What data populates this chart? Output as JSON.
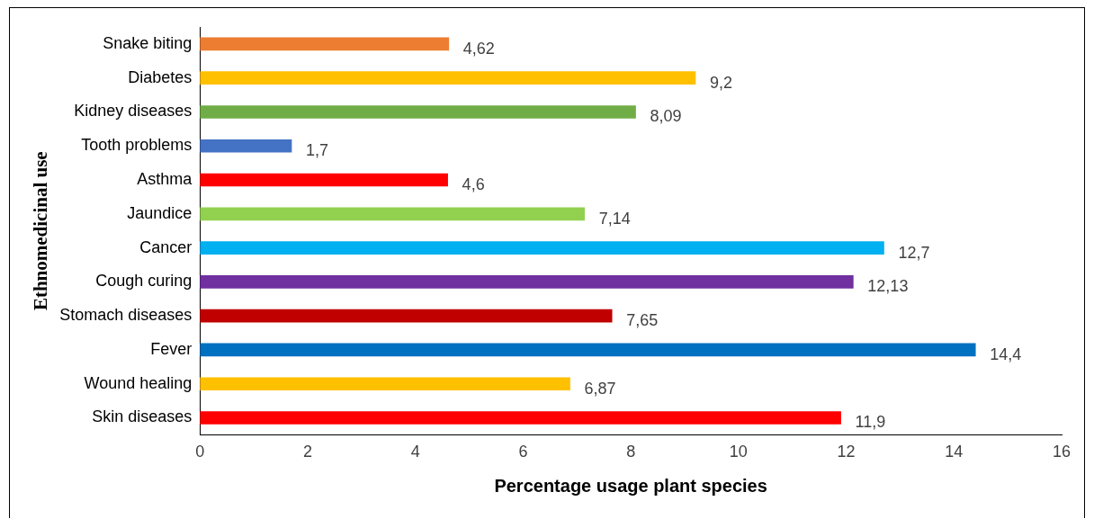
{
  "chart_data": {
    "type": "bar",
    "orientation": "horizontal",
    "xlabel": "Percentage usage plant species",
    "ylabel": "Ethnomedicinal use",
    "categories": [
      "Snake biting",
      "Diabetes",
      "Kidney diseases",
      "Tooth problems",
      "Asthma",
      "Jaundice",
      "Cancer",
      "Cough curing",
      "Stomach diseases",
      "Fever",
      "Wound healing",
      "Skin diseases"
    ],
    "values": [
      4.62,
      9.2,
      8.09,
      1.7,
      4.6,
      7.14,
      12.7,
      12.13,
      7.65,
      14.4,
      6.87,
      11.9
    ],
    "value_labels": [
      "4,62",
      "9,2",
      "8,09",
      "1,7",
      "4,6",
      "7,14",
      "12,7",
      "12,13",
      "7,65",
      "14,4",
      "6,87",
      "11,9"
    ],
    "colors": [
      "#ed7d31",
      "#ffc000",
      "#70ad47",
      "#4472c4",
      "#ff0000",
      "#92d050",
      "#00b0f0",
      "#7030a0",
      "#c00000",
      "#0070c0",
      "#ffc000",
      "#ff0000"
    ],
    "xlim": [
      0,
      16
    ],
    "xticks": [
      0,
      2,
      4,
      6,
      8,
      10,
      12,
      14,
      16
    ],
    "grid": false,
    "legend": false
  }
}
